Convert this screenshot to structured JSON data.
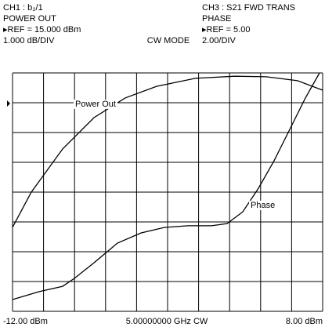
{
  "header": {
    "left": [
      "CH1 : b₂/1",
      "POWER OUT",
      "▸REF = 15.000 dBm",
      "1.000 dB/DIV"
    ],
    "center": "CW MODE",
    "right": [
      "CH3 : S21 FWD TRANS",
      "PHASE",
      "▸REF = 5.00",
      "2.00/DIV"
    ]
  },
  "footer": {
    "left": "-12.00 dBm",
    "center": "5.00000000 GHz CW",
    "right": "8.00 dBm"
  },
  "chart_data": {
    "type": "line",
    "xlim": [
      -12,
      8
    ],
    "xticks": [
      -12,
      -10,
      -8,
      -6,
      -4,
      -2,
      0,
      2,
      4,
      6,
      8
    ],
    "ylim": [
      8,
      16
    ],
    "yticks": [
      8,
      9,
      10,
      11,
      12,
      13,
      14,
      15,
      16
    ],
    "y2lim": [
      -5,
      11
    ],
    "grid": true,
    "series": [
      {
        "name": "Power Out",
        "color": "#000000",
        "x": [
          -12,
          -10.79,
          -8.77,
          -6.75,
          -4.73,
          -2.71,
          -0.18,
          2.34,
          4.36,
          6.38,
          8.0
        ],
        "values": [
          10.82,
          12.0,
          13.45,
          14.5,
          15.16,
          15.55,
          15.82,
          15.89,
          15.87,
          15.74,
          15.42
        ]
      },
      {
        "name": "Phase",
        "color": "#000000",
        "axis": "y2",
        "x": [
          -12,
          -10.28,
          -8.77,
          -8.01,
          -6.75,
          -5.23,
          -3.72,
          -2.2,
          -0.69,
          0.83,
          1.84,
          2.85,
          3.86,
          4.87,
          5.88,
          6.89,
          7.8
        ],
        "values": [
          -4.21,
          -3.68,
          -3.32,
          -2.79,
          -1.74,
          -0.42,
          0.26,
          0.63,
          0.74,
          0.74,
          0.89,
          1.68,
          3.26,
          5.11,
          7.21,
          9.32,
          11.0
        ]
      }
    ]
  }
}
